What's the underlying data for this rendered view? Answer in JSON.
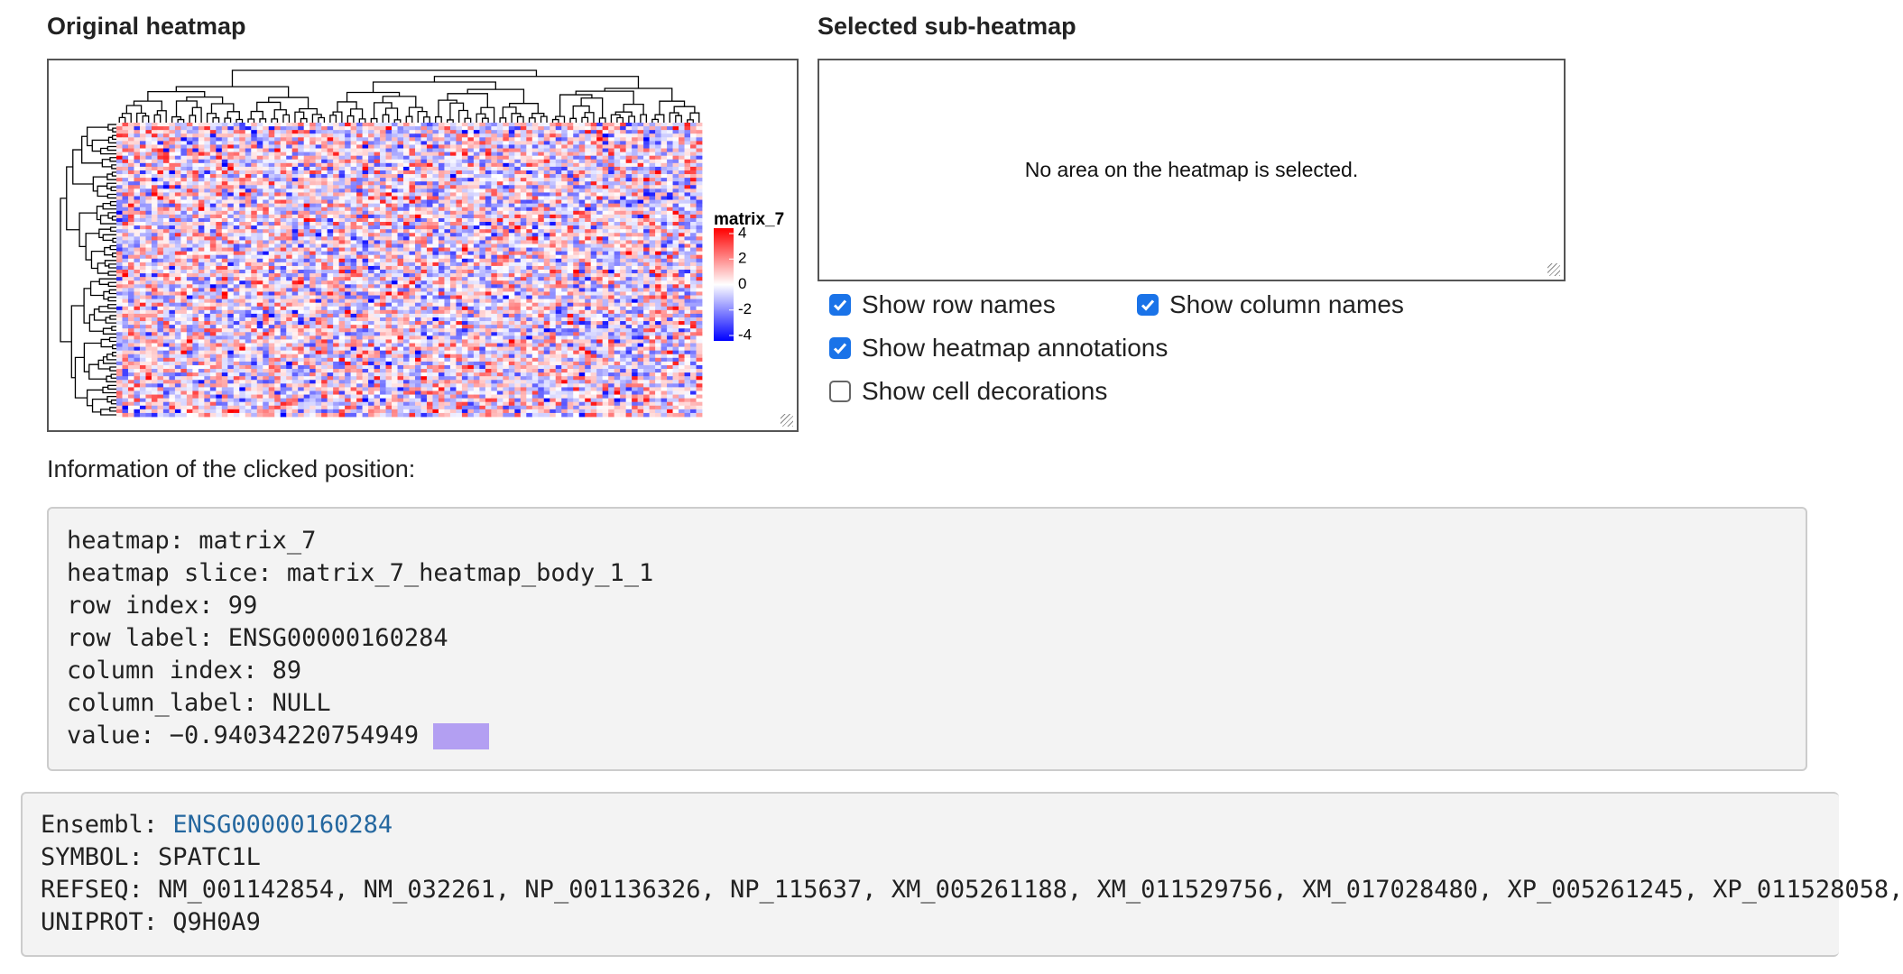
{
  "left_panel": {
    "title": "Original heatmap",
    "legend": {
      "title": "matrix_7",
      "ticks": [
        4,
        2,
        0,
        -2,
        -4
      ]
    }
  },
  "right_panel": {
    "title": "Selected sub-heatmap",
    "message": "No area on the heatmap is selected.",
    "options": [
      {
        "label": "Show row names",
        "checked": true
      },
      {
        "label": "Show column names",
        "checked": true
      },
      {
        "label": "Show heatmap annotations",
        "checked": true
      },
      {
        "label": "Show cell decorations",
        "checked": false
      }
    ]
  },
  "info": {
    "title": "Information of the clicked position:",
    "lines": [
      "heatmap: matrix_7",
      "heatmap slice: matrix_7_heatmap_body_1_1",
      "row index: 99",
      "row label: ENSG00000160284",
      "column index: 89",
      "column_label: NULL",
      "value: −0.94034220754949"
    ],
    "value_color": "#b39ff2"
  },
  "annotation": {
    "ensembl_label": "Ensembl:",
    "ensembl_id": "ENSG00000160284",
    "lines": [
      "SYMBOL: SPATC1L",
      "REFSEQ: NM_001142854, NM_032261, NP_001136326, NP_115637, XM_005261188, XM_011529756, XM_017028480, XP_005261245, XP_011528058,",
      "UNIPROT: Q9H0A9"
    ]
  }
}
